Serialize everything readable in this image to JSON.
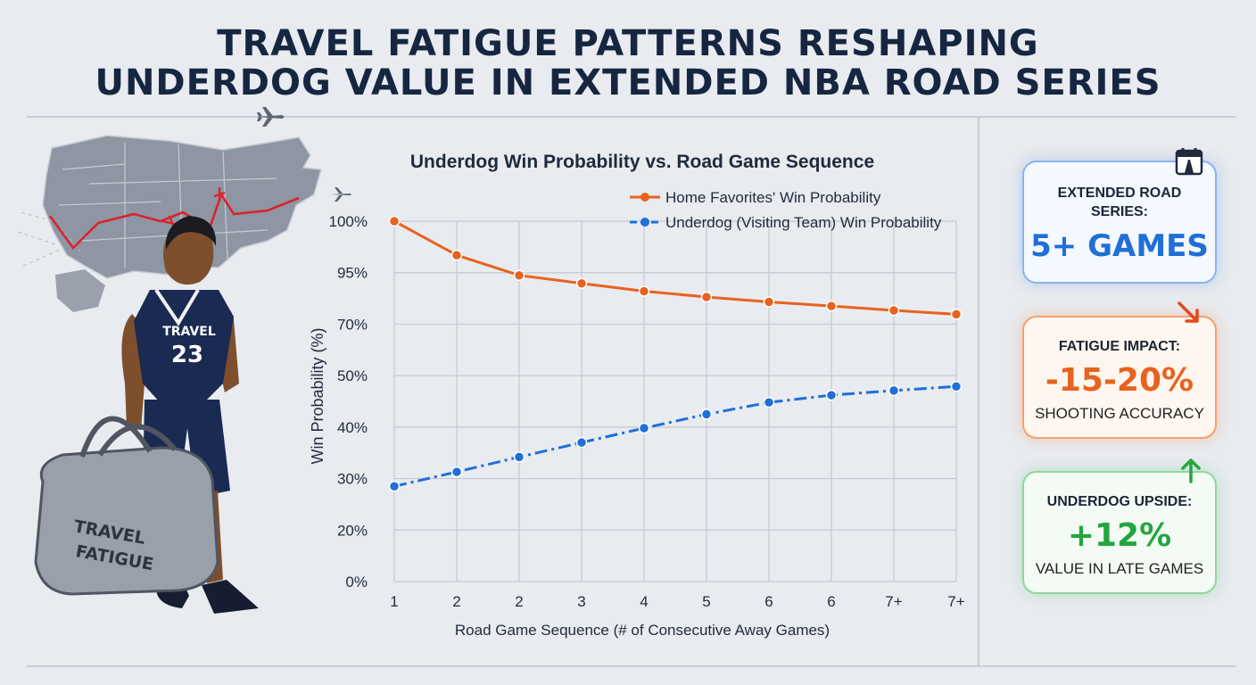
{
  "header": {
    "title_line1": "TRAVEL FATIGUE PATTERNS RESHAPING",
    "title_line2": "UNDERDOG VALUE IN EXTENDED NBA ROAD SERIES"
  },
  "illustration": {
    "jersey_text": "TRAVEL",
    "jersey_number": "23",
    "bag_text_line1": "TRAVEL",
    "bag_text_line2": "FATIGUE"
  },
  "chart_data": {
    "type": "line",
    "title": "Underdog Win Probability vs. Road Game Sequence",
    "xlabel": "Road Game Sequence (# of Consecutive Away Games)",
    "ylabel": "Win Probability (%)",
    "categories": [
      "1",
      "2",
      "2",
      "3",
      "4",
      "5",
      "6",
      "6",
      "7+",
      "7+"
    ],
    "ytick_labels": [
      "0%",
      "20%",
      "30%",
      "40%",
      "50%",
      "70%",
      "95%",
      "100%"
    ],
    "grid": true,
    "legend_position": "top-right",
    "series": [
      {
        "name": "Home Favorites' Win Probability",
        "color": "#e8621f",
        "style": "solid",
        "values": [
          100,
          96.7,
          93.7,
          89.8,
          86.0,
          83.2,
          80.8,
          78.8,
          76.7,
          74.8
        ]
      },
      {
        "name": "Underdog (Visiting Team) Win Probability",
        "color": "#1f6fd6",
        "style": "dashdot",
        "values": [
          28.5,
          31.3,
          34.2,
          37.0,
          39.8,
          42.5,
          44.8,
          46.2,
          47.1,
          47.9
        ]
      }
    ]
  },
  "cards": {
    "road": {
      "label_line1": "EXTENDED ROAD",
      "label_line2": "SERIES:",
      "value": "5+ GAMES",
      "icon": "calendar-road-icon",
      "color": "#1f6fd6"
    },
    "fatigue": {
      "label": "FATIGUE IMPACT:",
      "value": "-15-20%",
      "sub": "SHOOTING ACCURACY",
      "icon": "arrow-down-right-icon",
      "color": "#e8621f"
    },
    "upside": {
      "label": "UNDERDOG UPSIDE:",
      "value": "+12%",
      "sub": "VALUE IN LATE GAMES",
      "icon": "arrow-up-icon",
      "color": "#24a53f"
    }
  }
}
